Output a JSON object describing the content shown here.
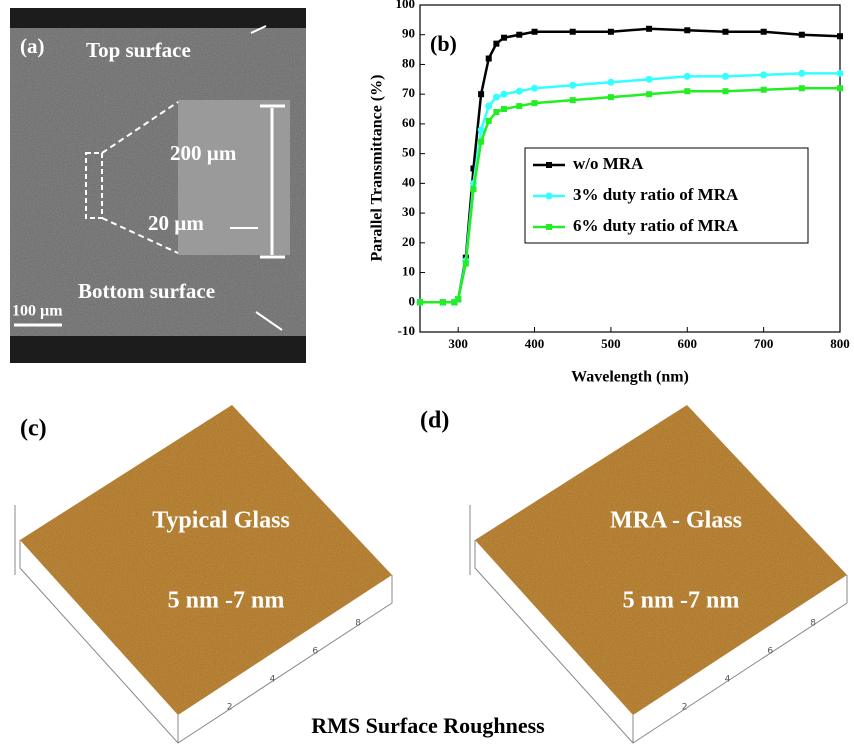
{
  "panel_a": {
    "label": "(a)",
    "top": "Top surface",
    "bottom": "Bottom surface",
    "height_label": "200 µm",
    "width_label": "20 µm",
    "scale_bar": "100 µm"
  },
  "chart_data": {
    "type": "line",
    "label": "(b)",
    "xlabel": "Wavelength (nm)",
    "ylabel": "Parallel Transmittance (%)",
    "x": [
      250,
      280,
      295,
      300,
      310,
      320,
      330,
      340,
      350,
      360,
      380,
      400,
      450,
      500,
      550,
      600,
      650,
      700,
      750,
      800
    ],
    "series": [
      {
        "name": "w/o MRA",
        "color": "#000000",
        "marker": "square",
        "values": [
          0,
          0,
          0,
          1,
          15,
          45,
          70,
          82,
          87,
          89,
          90,
          91,
          91,
          91,
          92,
          91.5,
          91,
          91,
          90,
          89.5
        ]
      },
      {
        "name": "3% duty ratio of MRA",
        "color": "#33ffff",
        "marker": "circle",
        "values": [
          0,
          0,
          0,
          1,
          14,
          40,
          58,
          66,
          69,
          70,
          71,
          72,
          73,
          74,
          75,
          76,
          76,
          76.5,
          77,
          77
        ]
      },
      {
        "name": "6% duty ratio of MRA",
        "color": "#22ee22",
        "marker": "square",
        "values": [
          0,
          0,
          0,
          1,
          13,
          38,
          54,
          61,
          64,
          65,
          66,
          67,
          68,
          69,
          70,
          71,
          71,
          71.5,
          72,
          72
        ]
      }
    ],
    "xlim": [
      250,
      800
    ],
    "xticks": [
      300,
      400,
      500,
      600,
      700,
      800
    ],
    "ylim": [
      -10,
      100
    ],
    "yticks": [
      -10,
      0,
      10,
      20,
      30,
      40,
      50,
      60,
      70,
      80,
      90,
      100
    ],
    "legend": "right"
  },
  "panel_c": {
    "label": "(c)",
    "title": "Typical Glass",
    "roughness": "5 nm -7 nm"
  },
  "panel_d": {
    "label": "(d)",
    "title": "MRA - Glass",
    "roughness": "5 nm -7 nm"
  },
  "afm_ticks": [
    2,
    4,
    6,
    8
  ],
  "caption": "RMS Surface Roughness"
}
